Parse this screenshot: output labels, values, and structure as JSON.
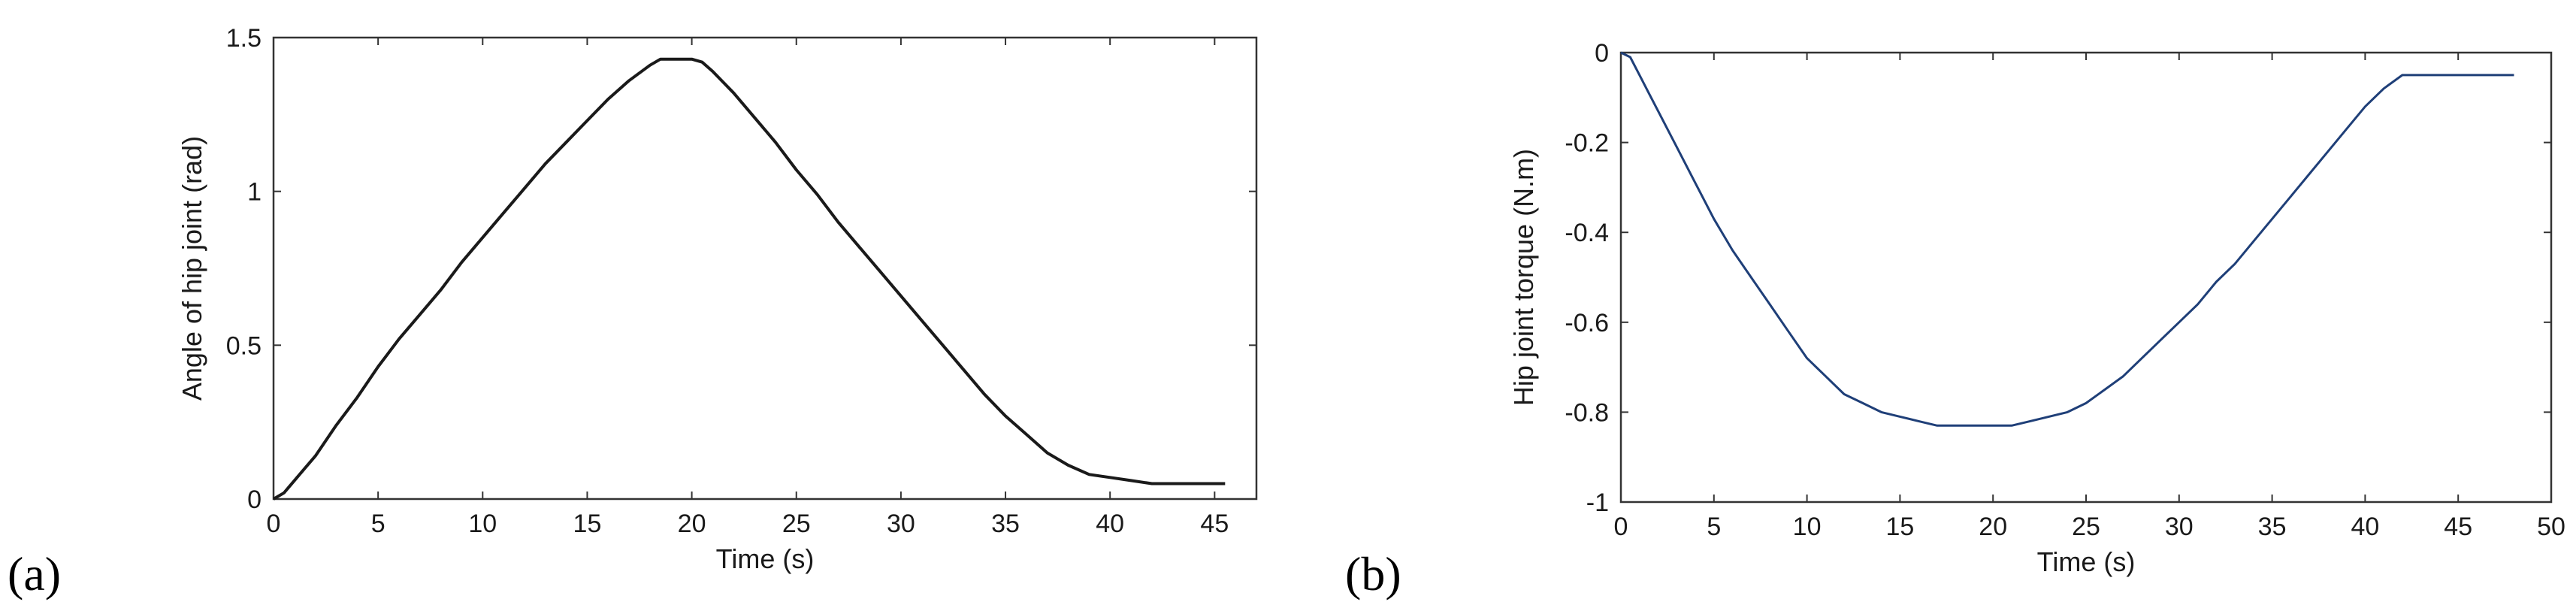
{
  "panels": [
    {
      "label": "(a)"
    },
    {
      "label": "(b)"
    }
  ],
  "chart_data": [
    {
      "type": "line",
      "title": "",
      "xlabel": "Time (s)",
      "ylabel": "Angle of hip joint (rad)",
      "xlim": [
        0,
        47
      ],
      "ylim": [
        0,
        1.5
      ],
      "xticks": [
        0,
        5,
        10,
        15,
        20,
        25,
        30,
        35,
        40,
        45
      ],
      "yticks": [
        0,
        0.5,
        1,
        1.5
      ],
      "xtick_labels": [
        "0",
        "5",
        "10",
        "15",
        "20",
        "25",
        "30",
        "35",
        "40",
        "45"
      ],
      "ytick_labels": [
        "0",
        "0.5",
        "1",
        "1.5"
      ],
      "grid": false,
      "line_color": "#1a1a1a",
      "series": [
        {
          "x": [
            0,
            0.5,
            1,
            1.5,
            2,
            3,
            4,
            5,
            6,
            7,
            8,
            9,
            10,
            11,
            12,
            13,
            14,
            15,
            16,
            17,
            18,
            18.5,
            19,
            20,
            20.5,
            21,
            22,
            23,
            24,
            25,
            26,
            27,
            28,
            29,
            30,
            31,
            32,
            33,
            34,
            35,
            36,
            37,
            38,
            39,
            40,
            41,
            42,
            43,
            44,
            45,
            45.5
          ],
          "y": [
            0,
            0.02,
            0.06,
            0.1,
            0.14,
            0.24,
            0.33,
            0.43,
            0.52,
            0.6,
            0.68,
            0.77,
            0.85,
            0.93,
            1.01,
            1.09,
            1.16,
            1.23,
            1.3,
            1.36,
            1.41,
            1.43,
            1.43,
            1.43,
            1.42,
            1.39,
            1.32,
            1.24,
            1.16,
            1.07,
            0.99,
            0.9,
            0.82,
            0.74,
            0.66,
            0.58,
            0.5,
            0.42,
            0.34,
            0.27,
            0.21,
            0.15,
            0.11,
            0.08,
            0.07,
            0.06,
            0.05,
            0.05,
            0.05,
            0.05,
            0.05
          ]
        }
      ]
    },
    {
      "type": "line",
      "title": "",
      "xlabel": "Time (s)",
      "ylabel": "Hip joint torque (N.m)",
      "xlim": [
        0,
        50
      ],
      "ylim": [
        -1,
        0
      ],
      "xticks": [
        0,
        5,
        10,
        15,
        20,
        25,
        30,
        35,
        40,
        45,
        50
      ],
      "yticks": [
        -1,
        -0.8,
        -0.6,
        -0.4,
        -0.2,
        0
      ],
      "xtick_labels": [
        "0",
        "5",
        "10",
        "15",
        "20",
        "25",
        "30",
        "35",
        "40",
        "45",
        "50"
      ],
      "ytick_labels": [
        "-1",
        "-0.8",
        "-0.6",
        "-0.4",
        "-0.2",
        "0"
      ],
      "grid": false,
      "line_color": "#1f3f78",
      "series": [
        {
          "x": [
            0,
            0.5,
            1,
            1.5,
            2,
            3,
            4,
            5,
            6,
            7,
            8,
            9,
            10,
            11,
            12,
            13,
            14,
            15,
            16,
            17,
            18,
            19,
            20,
            21,
            22,
            23,
            24,
            25,
            26,
            27,
            28,
            29,
            30,
            31,
            32,
            33,
            34,
            35,
            36,
            37,
            38,
            39,
            40,
            41,
            42,
            43,
            44,
            45,
            46,
            47,
            48
          ],
          "y": [
            0,
            -0.01,
            -0.05,
            -0.09,
            -0.13,
            -0.21,
            -0.29,
            -0.37,
            -0.44,
            -0.5,
            -0.56,
            -0.62,
            -0.68,
            -0.72,
            -0.76,
            -0.78,
            -0.8,
            -0.81,
            -0.82,
            -0.83,
            -0.83,
            -0.83,
            -0.83,
            -0.83,
            -0.82,
            -0.81,
            -0.8,
            -0.78,
            -0.75,
            -0.72,
            -0.68,
            -0.64,
            -0.6,
            -0.56,
            -0.51,
            -0.47,
            -0.42,
            -0.37,
            -0.32,
            -0.27,
            -0.22,
            -0.17,
            -0.12,
            -0.08,
            -0.05,
            -0.05,
            -0.05,
            -0.05,
            -0.05,
            -0.05,
            -0.05
          ]
        }
      ]
    }
  ]
}
